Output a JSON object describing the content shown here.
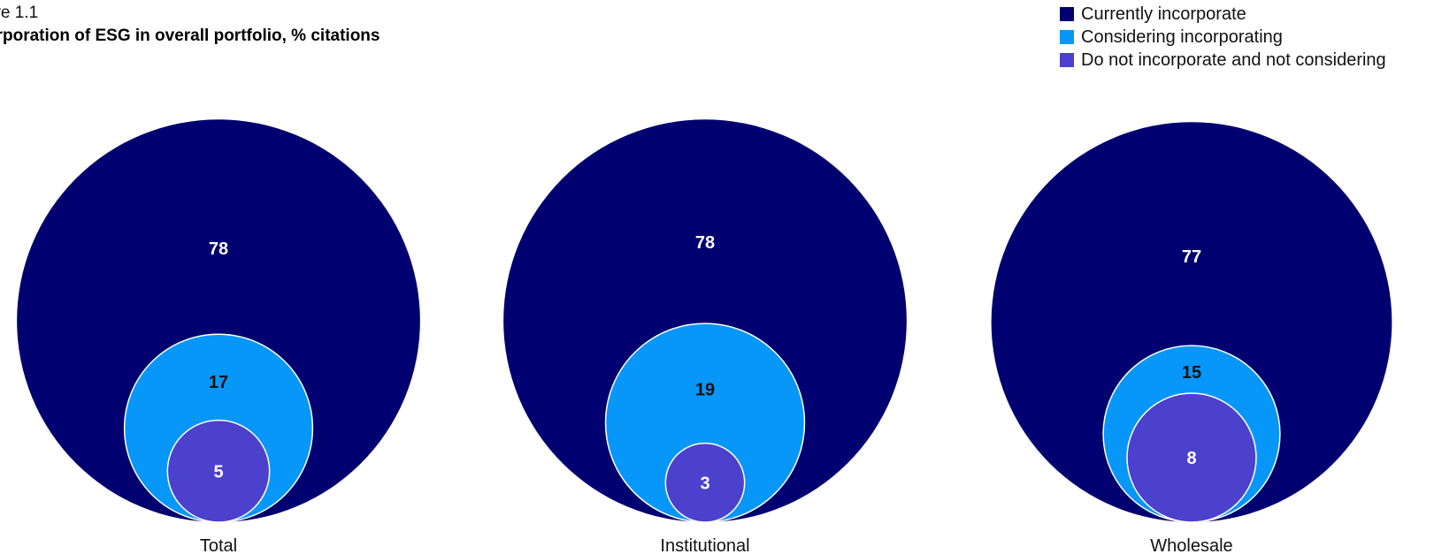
{
  "figure": {
    "label": "ure 1.1",
    "title": "orporation of ESG in overall portfolio, % citations"
  },
  "colors": {
    "currently": "#000070",
    "considering": "#0697f9",
    "not_considering": "#4b41cc"
  },
  "legend": [
    {
      "label": "Currently incorporate",
      "color": "#000070"
    },
    {
      "label": "Considering incorporating",
      "color": "#0697f9"
    },
    {
      "label": "Do not incorporate and not considering",
      "color": "#4b41cc"
    }
  ],
  "chart_data": {
    "type": "nested-bubble",
    "series": [
      {
        "name": "Currently incorporate",
        "color": "#000070"
      },
      {
        "name": "Considering incorporating",
        "color": "#0697f9"
      },
      {
        "name": "Do not incorporate and not considering",
        "color": "#4b41cc"
      }
    ],
    "categories": [
      "Total",
      "Institutional",
      "Wholesale"
    ],
    "values": [
      {
        "category": "Total",
        "currently": 78,
        "considering": 17,
        "not_considering": 5
      },
      {
        "category": "Institutional",
        "currently": 78,
        "considering": 19,
        "not_considering": 3
      },
      {
        "category": "Wholesale",
        "currently": 77,
        "considering": 15,
        "not_considering": 8
      }
    ],
    "legend_position": "top-right",
    "grid": false
  }
}
